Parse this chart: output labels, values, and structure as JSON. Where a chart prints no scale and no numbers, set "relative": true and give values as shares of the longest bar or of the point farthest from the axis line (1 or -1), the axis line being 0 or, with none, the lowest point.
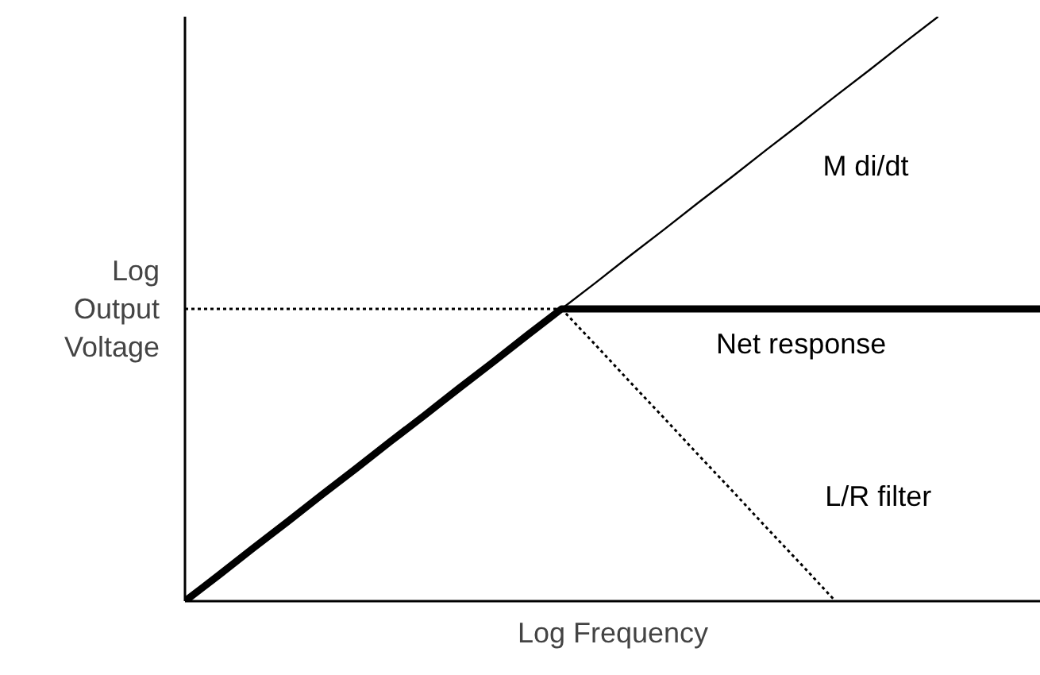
{
  "chart_data": {
    "type": "line",
    "relative": true,
    "xlabel": "Log Frequency",
    "ylabel": "Log Output Voltage",
    "marker": "none",
    "categories": [
      null,
      null,
      null,
      null,
      null,
      null,
      null,
      null,
      null,
      null,
      null,
      null,
      null,
      null,
      null,
      null,
      null,
      null,
      null,
      null,
      null,
      null,
      null,
      null,
      null,
      null
    ],
    "series": [
      {
        "name": "M  di/dt",
        "color": "#000000",
        "line_style": "solid",
        "values": [
          0,
          0.045,
          0.091,
          0.136,
          0.182,
          0.227,
          0.273,
          0.318,
          0.364,
          0.409,
          0.455,
          0.5,
          0.545,
          0.591,
          0.636,
          0.682,
          0.727,
          0.773,
          0.818,
          0.864,
          0.909,
          0.955,
          1,
          null,
          null,
          null
        ]
      },
      {
        "name": "Net response",
        "color": "#000000",
        "line_style": "solid",
        "values": [
          0,
          0.045,
          0.091,
          0.136,
          0.182,
          0.227,
          0.273,
          0.318,
          0.364,
          0.409,
          0.455,
          0.5,
          0.5,
          0.5,
          0.5,
          0.5,
          0.5,
          0.5,
          0.5,
          0.5,
          0.5,
          0.5,
          0.5,
          0.5,
          0.5,
          0.5
        ]
      },
      {
        "name": "L/R filter",
        "color": "#000000",
        "line_style": "dotted",
        "values": [
          null,
          null,
          null,
          null,
          null,
          null,
          null,
          null,
          null,
          null,
          null,
          0.5,
          0.438,
          0.375,
          0.313,
          0.25,
          0.188,
          0.125,
          0.063,
          0,
          null,
          null,
          null,
          null,
          null,
          null
        ]
      },
      {
        "color": "#000000",
        "line_style": "dotted",
        "values": [
          0.5,
          0.5,
          0.5,
          0.5,
          0.5,
          0.5,
          0.5,
          0.5,
          0.5,
          0.5,
          0.5,
          0.5,
          null,
          null,
          null,
          null,
          null,
          null,
          null,
          null,
          null,
          null,
          null,
          null,
          null,
          null
        ]
      }
    ]
  }
}
